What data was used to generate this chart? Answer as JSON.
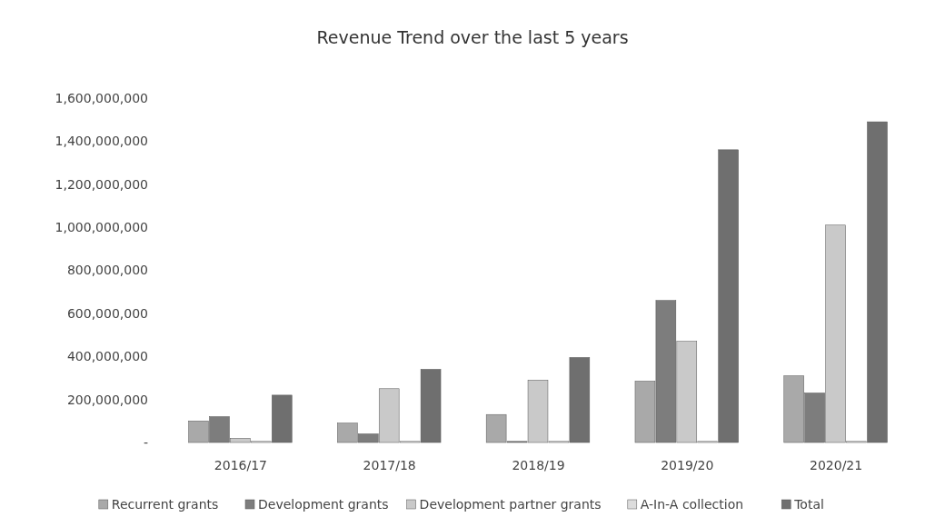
{
  "chart_data": {
    "type": "bar",
    "title": "Revenue Trend over the last 5 years",
    "categories": [
      "2016/17",
      "2017/18",
      "2018/19",
      "2019/20",
      "2020/21"
    ],
    "series": [
      {
        "name": "Recurrent grants",
        "color": "#a9a9a9",
        "values": [
          100000000,
          90000000,
          130000000,
          285000000,
          310000000
        ]
      },
      {
        "name": "Development grants",
        "color": "#7d7d7d",
        "values": [
          120000000,
          40000000,
          5000000,
          660000000,
          230000000
        ]
      },
      {
        "name": "Development partner grants",
        "color": "#c9c9c9",
        "values": [
          20000000,
          250000000,
          290000000,
          470000000,
          1010000000
        ]
      },
      {
        "name": "A-In-A collection",
        "color": "#dcdcdc",
        "values": [
          5000000,
          5000000,
          5000000,
          5000000,
          5000000
        ]
      },
      {
        "name": "Total",
        "color": "#6f6f6f",
        "values": [
          220000000,
          340000000,
          395000000,
          1360000000,
          1490000000
        ]
      }
    ],
    "ylim": [
      0,
      1600000000
    ],
    "yticks": [
      {
        "value": 0,
        "label": "-"
      },
      {
        "value": 200000000,
        "label": "200,000,000"
      },
      {
        "value": 400000000,
        "label": "400,000,000"
      },
      {
        "value": 600000000,
        "label": "600,000,000"
      },
      {
        "value": 800000000,
        "label": "800,000,000"
      },
      {
        "value": 1000000000,
        "label": "1,000,000,000"
      },
      {
        "value": 1200000000,
        "label": "1,200,000,000"
      },
      {
        "value": 1400000000,
        "label": "1,400,000,000"
      },
      {
        "value": 1600000000,
        "label": "1,600,000,000"
      }
    ],
    "grid": false,
    "legend": "bottom"
  }
}
